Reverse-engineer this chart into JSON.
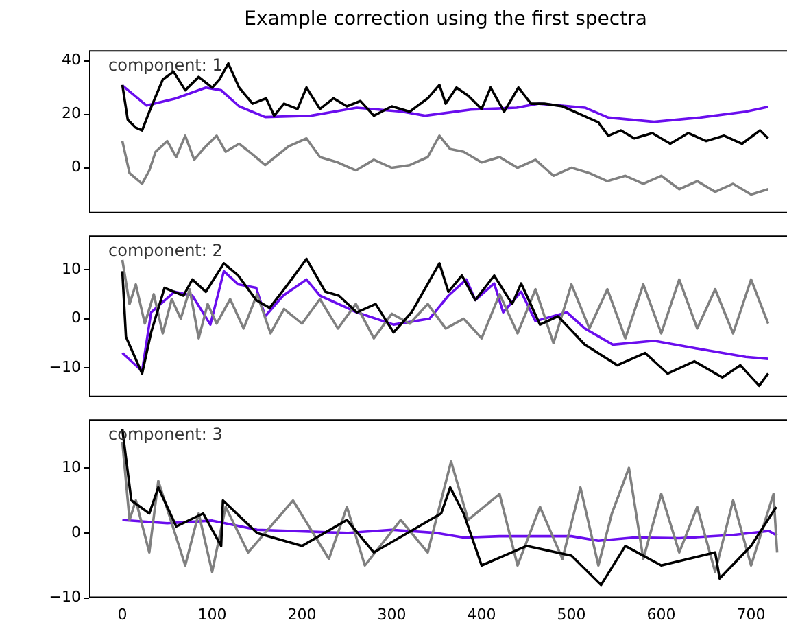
{
  "chart_data": [
    {
      "type": "line",
      "title": "Example correction using the first spectra",
      "annotations": [
        "component: 1"
      ],
      "xlim": [
        -37,
        740
      ],
      "ylim": [
        -17,
        44
      ],
      "yticks": [
        0,
        20,
        40
      ],
      "tick_labels": "y",
      "series": [
        {
          "color": "#000000",
          "x": [
            0,
            6,
            15,
            22,
            30,
            45,
            57,
            70,
            85,
            100,
            108,
            118,
            130,
            145,
            160,
            169,
            180,
            195,
            205,
            220,
            235,
            250,
            265,
            280,
            300,
            320,
            340,
            353,
            360,
            372,
            385,
            400,
            410,
            425,
            441,
            455,
            470,
            490,
            510,
            530,
            541,
            555,
            570,
            590,
            610,
            630,
            650,
            670,
            690,
            710,
            719
          ],
          "values": [
            31,
            18,
            15,
            14,
            21,
            33,
            36,
            29,
            34,
            30,
            33,
            39,
            30,
            24,
            26,
            19.5,
            24,
            22,
            30,
            22,
            26,
            23,
            25,
            19.5,
            23,
            21,
            26,
            31,
            24,
            30,
            27,
            22,
            30,
            21,
            30,
            24,
            24,
            23,
            20,
            17,
            12,
            14,
            11,
            13,
            9,
            13,
            10,
            12,
            9,
            14,
            11
          ]
        },
        {
          "color": "#808080",
          "x": [
            0,
            8,
            15,
            22,
            30,
            37,
            50,
            60,
            70,
            80,
            90,
            105,
            115,
            130,
            145,
            159,
            170,
            185,
            205,
            220,
            240,
            260,
            280,
            300,
            320,
            340,
            353,
            365,
            380,
            400,
            420,
            440,
            460,
            480,
            500,
            520,
            540,
            560,
            580,
            600,
            620,
            640,
            660,
            680,
            700,
            719
          ],
          "values": [
            10,
            -2,
            -4,
            -6,
            -1,
            6,
            10,
            4,
            12,
            3,
            7,
            12,
            6,
            9,
            5,
            1,
            4,
            8,
            11,
            4,
            2,
            -1,
            3,
            0,
            1,
            4,
            12,
            7,
            6,
            2,
            4,
            0,
            3,
            -3,
            0,
            -2,
            -5,
            -3,
            -6,
            -3,
            -8,
            -5,
            -9,
            -6,
            -10,
            -8
          ]
        },
        {
          "color": "#6a0dee",
          "x": [
            0,
            27,
            60,
            93,
            110,
            130,
            159,
            210,
            261,
            312,
            337,
            388,
            439,
            464,
            515,
            541,
            592,
            643,
            694,
            719
          ],
          "values": [
            30.8,
            23.3,
            26,
            30,
            29,
            23,
            19,
            19.5,
            22.5,
            21,
            19.5,
            21.8,
            22.5,
            24,
            22.5,
            18.8,
            17.2,
            18.8,
            21,
            22.8
          ]
        }
      ]
    },
    {
      "type": "line",
      "annotations": [
        "component: 2"
      ],
      "xlim": [
        -37,
        740
      ],
      "ylim": [
        -16,
        17
      ],
      "yticks": [
        -10,
        0,
        10
      ],
      "tick_labels": "y",
      "series": [
        {
          "color": "#000000",
          "x": [
            0,
            4,
            22,
            32,
            47,
            68,
            78,
            93,
            113,
            129,
            149,
            164,
            185,
            205,
            226,
            241,
            261,
            282,
            302,
            322,
            353,
            363,
            378,
            393,
            414,
            434,
            444,
            465,
            485,
            515,
            551,
            582,
            607,
            637,
            668,
            688,
            709,
            719
          ],
          "values": [
            9.7,
            -3.7,
            -11.2,
            -2.8,
            6.3,
            4.7,
            8,
            5.5,
            11.3,
            8.8,
            3.8,
            2.2,
            7.2,
            12.2,
            5.5,
            4.7,
            1.3,
            3,
            -2.8,
            1.3,
            11.3,
            5.5,
            8.8,
            3.8,
            8.8,
            3,
            7.2,
            -1.2,
            0.5,
            -5.3,
            -9.5,
            -7,
            -11.2,
            -8.7,
            -12,
            -9.5,
            -13.7,
            -11.2
          ]
        },
        {
          "color": "#808080",
          "x": [
            0,
            8,
            15,
            25,
            35,
            45,
            55,
            65,
            75,
            85,
            95,
            105,
            120,
            135,
            150,
            165,
            180,
            200,
            220,
            240,
            260,
            280,
            300,
            320,
            340,
            360,
            380,
            400,
            420,
            440,
            460,
            480,
            500,
            520,
            540,
            560,
            580,
            600,
            620,
            640,
            660,
            680,
            700,
            719
          ],
          "values": [
            12,
            3,
            7,
            -1,
            5,
            -3,
            4,
            0,
            6,
            -4,
            3,
            -1,
            4,
            -2,
            5,
            -3,
            2,
            -1,
            4,
            -2,
            3,
            -4,
            1,
            -1,
            3,
            -2,
            0,
            -4,
            5,
            -3,
            6,
            -5,
            7,
            -2,
            6,
            -4,
            7,
            -3,
            8,
            -2,
            6,
            -3,
            8,
            -1
          ]
        },
        {
          "color": "#6a0dee",
          "x": [
            0,
            22,
            32,
            58,
            78,
            98,
            113,
            129,
            149,
            159,
            179,
            205,
            220,
            261,
            302,
            342,
            363,
            383,
            393,
            414,
            424,
            444,
            460,
            495,
            515,
            546,
            592,
            643,
            694,
            719
          ],
          "values": [
            -7,
            -10.7,
            1.3,
            5.5,
            4.7,
            -1.2,
            9.7,
            7,
            6.3,
            0.5,
            4.7,
            8,
            4.7,
            1.3,
            -1.2,
            0,
            4.7,
            8,
            3.8,
            7.2,
            1.3,
            5.5,
            -0.5,
            1.3,
            -2,
            -5.3,
            -4.5,
            -6.2,
            -7.8,
            -8.2
          ]
        }
      ]
    },
    {
      "type": "line",
      "annotations": [
        "component: 3"
      ],
      "xlim": [
        -37,
        740
      ],
      "ylim": [
        -10,
        17.5
      ],
      "xticks": [
        0,
        100,
        200,
        300,
        400,
        500,
        600,
        700
      ],
      "yticks": [
        -10,
        0,
        10
      ],
      "series": [
        {
          "color": "#000000",
          "x": [
            0,
            10,
            30,
            40,
            60,
            90,
            110,
            112,
            150,
            200,
            250,
            280,
            330,
            355,
            365,
            380,
            400,
            450,
            500,
            533,
            560,
            600,
            660,
            665,
            700,
            728
          ],
          "values": [
            16,
            5,
            3,
            7,
            1,
            3,
            -2,
            5,
            0,
            -2,
            2,
            -3,
            1,
            3,
            7,
            3,
            -5,
            -2,
            -3.5,
            -8,
            -2,
            -5,
            -3,
            -7,
            -2,
            4
          ]
        },
        {
          "color": "#808080",
          "x": [
            0,
            8,
            15,
            30,
            40,
            70,
            85,
            100,
            115,
            140,
            190,
            230,
            250,
            270,
            310,
            340,
            366,
            385,
            420,
            440,
            465,
            490,
            510,
            530,
            545,
            564,
            580,
            600,
            620,
            640,
            660,
            680,
            700,
            725,
            729
          ],
          "values": [
            14,
            2,
            5,
            -3,
            8,
            -5,
            3,
            -6,
            4,
            -3,
            5,
            -4,
            4,
            -5,
            2,
            -3,
            11,
            2,
            6,
            -5,
            4,
            -4,
            7,
            -5,
            3,
            10,
            -4,
            6,
            -3,
            4,
            -6,
            5,
            -5,
            6,
            -3
          ]
        },
        {
          "color": "#6a0dee",
          "x": [
            0,
            50,
            100,
            150,
            250,
            300,
            350,
            380,
            420,
            500,
            530,
            570,
            620,
            680,
            720,
            729
          ],
          "values": [
            2,
            1.5,
            1.9,
            0.5,
            0,
            0.5,
            0,
            -0.7,
            -0.5,
            -0.5,
            -1.2,
            -0.7,
            -0.8,
            -0.3,
            0.3,
            -0.4
          ]
        }
      ]
    }
  ]
}
